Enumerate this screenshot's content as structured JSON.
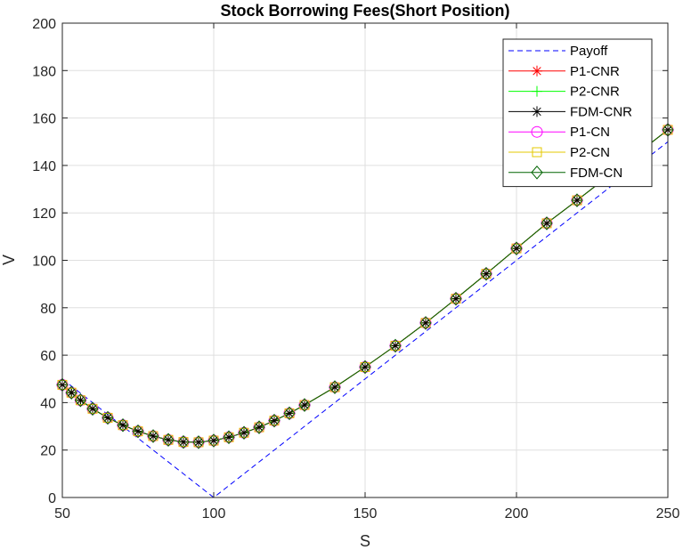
{
  "chart_data": {
    "type": "line",
    "title": "Stock Borrowing Fees(Short Position)",
    "xlabel": "S",
    "ylabel": "V",
    "xlim": [
      50,
      250
    ],
    "ylim": [
      0,
      200
    ],
    "xticks": [
      50,
      100,
      150,
      200,
      250
    ],
    "yticks": [
      0,
      20,
      40,
      60,
      80,
      100,
      120,
      140,
      160,
      180,
      200
    ],
    "grid": true,
    "legend_position": "top-right",
    "series": [
      {
        "name": "Payoff",
        "color": "#0000ff",
        "style": "dashed",
        "marker": "none",
        "x": [
          50,
          100,
          250
        ],
        "y": [
          50,
          0,
          150
        ]
      },
      {
        "name": "P1-CNR",
        "color": "#ff0000",
        "style": "solid",
        "marker": "asterisk",
        "x": [
          50,
          53,
          56,
          60,
          65,
          70,
          75,
          80,
          85,
          90,
          95,
          100,
          105,
          110,
          115,
          120,
          125,
          130,
          140,
          150,
          160,
          170,
          180,
          190,
          200,
          210,
          220,
          230,
          240,
          250
        ],
        "y": [
          47.5,
          44.2,
          41.0,
          37.4,
          33.6,
          30.5,
          27.9,
          25.9,
          24.3,
          23.4,
          23.3,
          24.0,
          25.4,
          27.3,
          29.6,
          32.4,
          35.5,
          39.0,
          46.5,
          55.0,
          64.0,
          73.6,
          83.8,
          94.3,
          105.0,
          115.6,
          125.3,
          135.2,
          145.1,
          155.0
        ]
      },
      {
        "name": "P2-CNR",
        "color": "#00ff00",
        "style": "solid",
        "marker": "plus",
        "x": [
          50,
          53,
          56,
          60,
          65,
          70,
          75,
          80,
          85,
          90,
          95,
          100,
          105,
          110,
          115,
          120,
          125,
          130,
          140,
          150,
          160,
          170,
          180,
          190,
          200,
          210,
          220,
          230,
          240,
          250
        ],
        "y": [
          47.5,
          44.2,
          41.0,
          37.4,
          33.6,
          30.5,
          27.9,
          25.9,
          24.3,
          23.4,
          23.3,
          24.0,
          25.4,
          27.3,
          29.6,
          32.4,
          35.5,
          39.0,
          46.5,
          55.0,
          64.0,
          73.6,
          83.8,
          94.3,
          105.0,
          115.6,
          125.3,
          135.2,
          145.1,
          155.0
        ]
      },
      {
        "name": "FDM-CNR",
        "color": "#000000",
        "style": "solid",
        "marker": "asterisk",
        "x": [
          50,
          53,
          56,
          60,
          65,
          70,
          75,
          80,
          85,
          90,
          95,
          100,
          105,
          110,
          115,
          120,
          125,
          130,
          140,
          150,
          160,
          170,
          180,
          190,
          200,
          210,
          220,
          230,
          240,
          250
        ],
        "y": [
          47.5,
          44.2,
          41.0,
          37.4,
          33.6,
          30.5,
          27.9,
          25.9,
          24.3,
          23.4,
          23.3,
          24.0,
          25.4,
          27.3,
          29.6,
          32.4,
          35.5,
          39.0,
          46.5,
          55.0,
          64.0,
          73.6,
          83.8,
          94.3,
          105.0,
          115.6,
          125.3,
          135.2,
          145.1,
          155.0
        ]
      },
      {
        "name": "P1-CN",
        "color": "#ff00ff",
        "style": "solid",
        "marker": "circle",
        "x": [
          50,
          53,
          56,
          60,
          65,
          70,
          75,
          80,
          85,
          90,
          95,
          100,
          105,
          110,
          115,
          120,
          125,
          130,
          140,
          150,
          160,
          170,
          180,
          190,
          200,
          210,
          220,
          230,
          240,
          250
        ],
        "y": [
          47.5,
          44.2,
          41.0,
          37.4,
          33.6,
          30.5,
          27.9,
          25.9,
          24.3,
          23.4,
          23.3,
          24.0,
          25.4,
          27.3,
          29.6,
          32.4,
          35.5,
          39.0,
          46.5,
          55.0,
          64.0,
          73.6,
          83.8,
          94.3,
          105.0,
          115.6,
          125.3,
          135.2,
          145.1,
          155.0
        ]
      },
      {
        "name": "P2-CN",
        "color": "#e6c800",
        "style": "solid",
        "marker": "square",
        "x": [
          50,
          53,
          56,
          60,
          65,
          70,
          75,
          80,
          85,
          90,
          95,
          100,
          105,
          110,
          115,
          120,
          125,
          130,
          140,
          150,
          160,
          170,
          180,
          190,
          200,
          210,
          220,
          230,
          240,
          250
        ],
        "y": [
          47.5,
          44.2,
          41.0,
          37.4,
          33.6,
          30.5,
          27.9,
          25.9,
          24.3,
          23.4,
          23.3,
          24.0,
          25.4,
          27.3,
          29.6,
          32.4,
          35.5,
          39.0,
          46.5,
          55.0,
          64.0,
          73.6,
          83.8,
          94.3,
          105.0,
          115.6,
          125.3,
          135.2,
          145.1,
          155.0
        ]
      },
      {
        "name": "FDM-CN",
        "color": "#006400",
        "style": "solid",
        "marker": "diamond",
        "x": [
          50,
          53,
          56,
          60,
          65,
          70,
          75,
          80,
          85,
          90,
          95,
          100,
          105,
          110,
          115,
          120,
          125,
          130,
          140,
          150,
          160,
          170,
          180,
          190,
          200,
          210,
          220,
          230,
          240,
          250
        ],
        "y": [
          47.5,
          44.2,
          41.0,
          37.4,
          33.6,
          30.5,
          27.9,
          25.9,
          24.3,
          23.4,
          23.3,
          24.0,
          25.4,
          27.3,
          29.6,
          32.4,
          35.5,
          39.0,
          46.5,
          55.0,
          64.0,
          73.6,
          83.8,
          94.3,
          105.0,
          115.6,
          125.3,
          135.2,
          145.1,
          155.0
        ]
      }
    ]
  }
}
